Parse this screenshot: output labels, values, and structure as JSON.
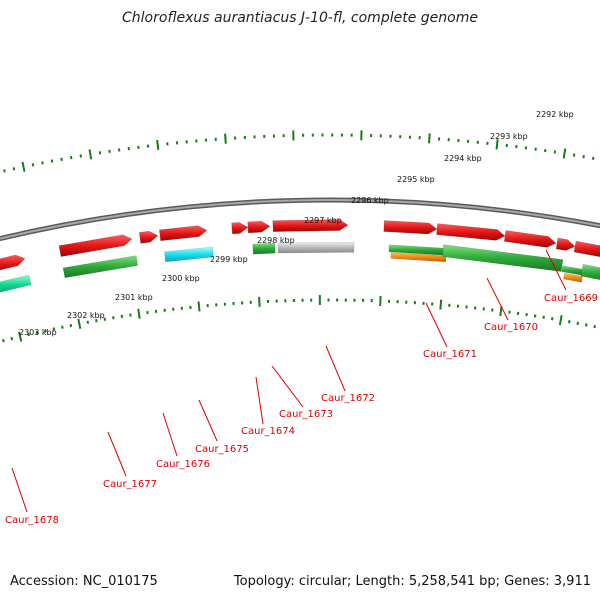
{
  "title": "Chloroflexus aurantiacus J-10-fl, complete genome",
  "footer": {
    "accession": "Accession: NC_010175",
    "stats": "Topology: circular; Length: 5,258,541 bp; Genes: 3,911"
  },
  "outer_scale": [
    "2292 kbp",
    "2293 kbp",
    "2294 kbp",
    "2295 kbp",
    "2296 kbp",
    "2297 kbp",
    "2298 kbp",
    "2299 kbp",
    "2300 kbp",
    "2301 kbp",
    "2302 kbp",
    "2303 kbp"
  ],
  "gene_labels": [
    "Caur_1669",
    "Caur_1670",
    "Caur_1671",
    "Caur_1672",
    "Caur_1673",
    "Caur_1674",
    "Caur_1675",
    "Caur_1676",
    "Caur_1677",
    "Caur_1678"
  ],
  "colors": {
    "cds_red": "#e21818",
    "rna_green": "#2ea83a",
    "cyan": "#18e0ee",
    "orange": "#f08a10",
    "gray": "#b8b8b8",
    "teal": "#10d890",
    "backbone": "#808080",
    "scale": "#1a7a1a",
    "label": "#e00000"
  }
}
